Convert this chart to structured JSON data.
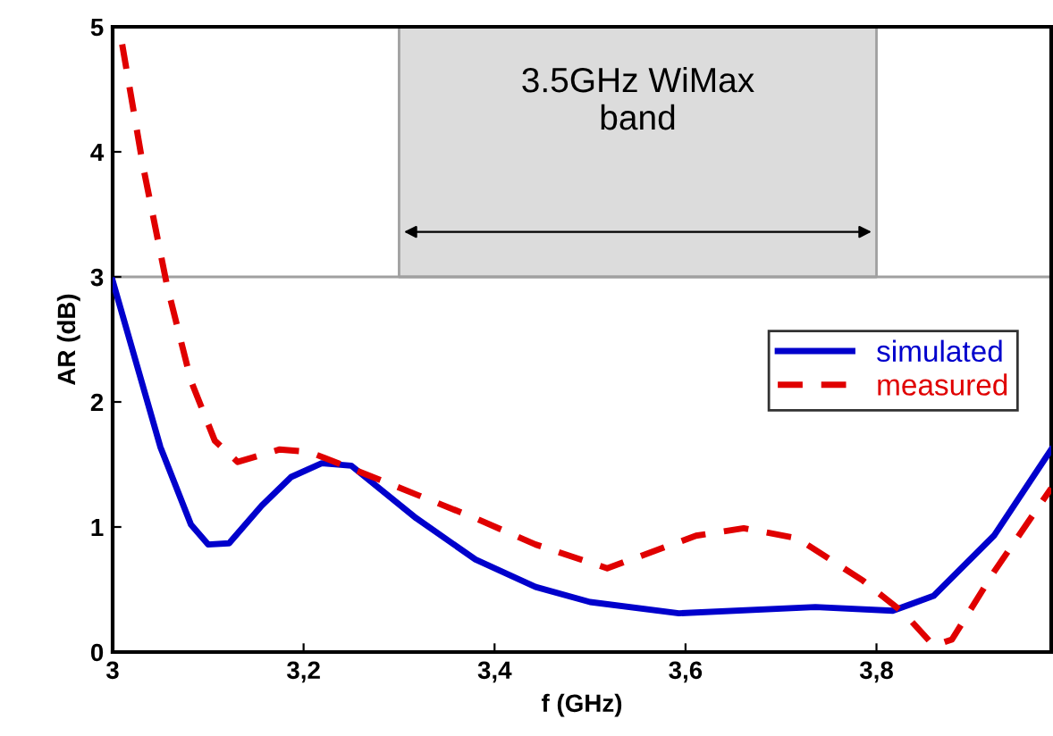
{
  "chart_data": {
    "type": "line",
    "xlabel": "f (GHz)",
    "ylabel": "AR (dB)",
    "xlim": [
      3,
      3.983
    ],
    "xticks": [
      3,
      {
        "value": 3.2,
        "label": "3,2"
      },
      {
        "value": 3.4,
        "label": "3,4"
      },
      {
        "value": 3.6,
        "label": "3,6"
      },
      {
        "value": 3.8,
        "label": "3,8"
      }
    ],
    "ylim": [
      0,
      5
    ],
    "yticks": [
      0,
      1,
      2,
      3,
      4,
      5
    ],
    "grid": false,
    "legend": "right",
    "ref_lines": [
      {
        "axis": "y",
        "value": 3,
        "color": "#a0a0a0"
      }
    ],
    "bands": [
      {
        "axis": "x",
        "from": 3.3,
        "to": 3.8,
        "label": "3.5GHz WiMax\nband",
        "color": "#dcdcdc"
      }
    ],
    "series": [
      {
        "name": "simulated",
        "color": "#0000cc",
        "line_style": "solid",
        "x": [
          3.0,
          3.05,
          3.082,
          3.1,
          3.122,
          3.156,
          3.187,
          3.219,
          3.25,
          3.318,
          3.38,
          3.443,
          3.5,
          3.593,
          3.736,
          3.817,
          3.86,
          3.923,
          3.983
        ],
        "values": [
          2.97,
          1.64,
          1.02,
          0.86,
          0.87,
          1.17,
          1.4,
          1.51,
          1.49,
          1.07,
          0.74,
          0.52,
          0.4,
          0.31,
          0.36,
          0.33,
          0.45,
          0.93,
          1.62
        ]
      },
      {
        "name": "measured",
        "color": "#e00000",
        "line_style": "dashed",
        "x": [
          3.01,
          3.032,
          3.057,
          3.082,
          3.107,
          3.131,
          3.175,
          3.206,
          3.256,
          3.318,
          3.38,
          3.443,
          3.518,
          3.611,
          3.661,
          3.717,
          3.786,
          3.829,
          3.86,
          3.879,
          3.923,
          3.983
        ],
        "values": [
          4.86,
          3.88,
          2.93,
          2.17,
          1.69,
          1.52,
          1.62,
          1.6,
          1.45,
          1.26,
          1.07,
          0.86,
          0.67,
          0.93,
          0.99,
          0.91,
          0.57,
          0.31,
          0.05,
          0.1,
          0.64,
          1.31
        ]
      }
    ]
  }
}
